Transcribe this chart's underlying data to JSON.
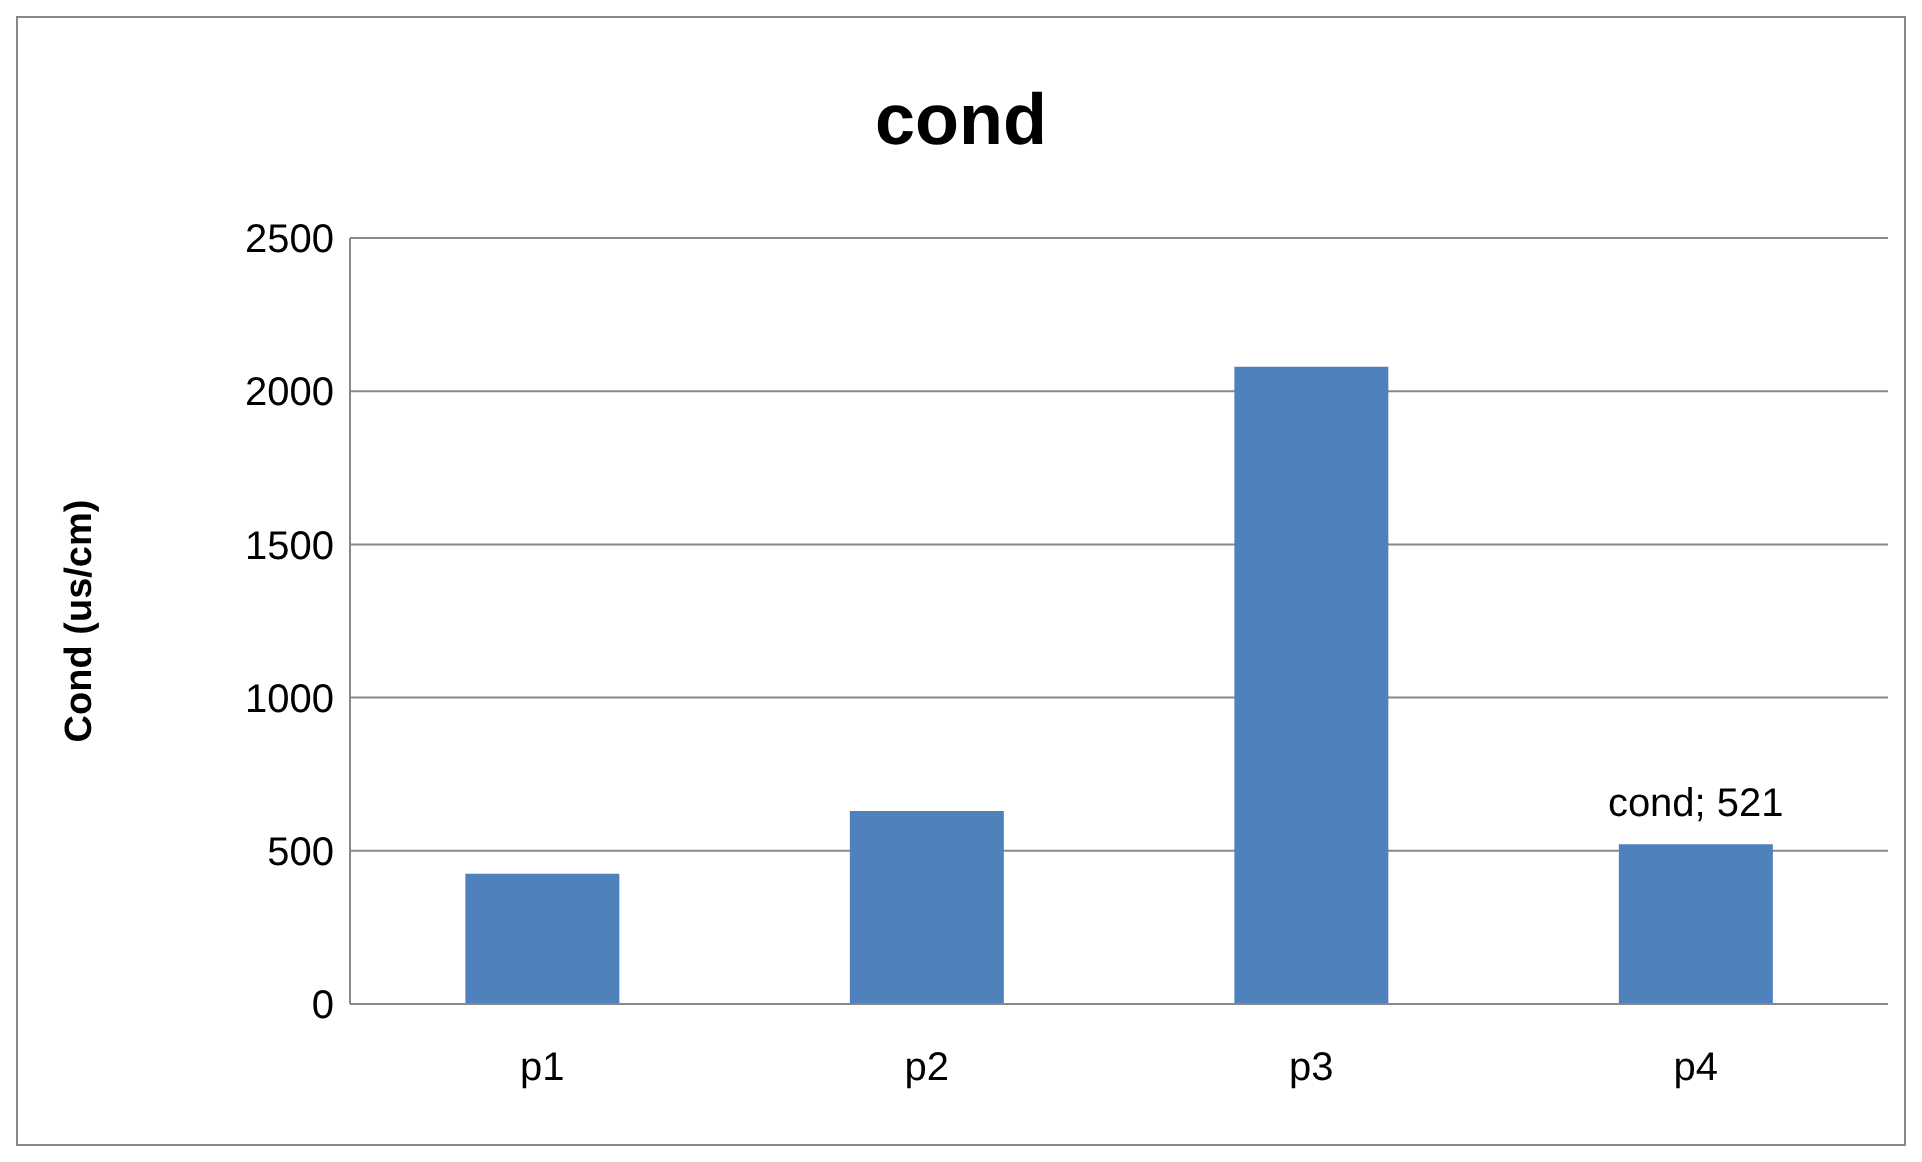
{
  "chart_data": {
    "type": "bar",
    "title": "cond",
    "ylabel": "Cond (us/cm)",
    "categories": [
      "p1",
      "p2",
      "p3",
      "p4"
    ],
    "series": [
      {
        "color": "#4f81bd",
        "values": [
          425,
          630,
          2080,
          521
        ]
      }
    ],
    "ylim": [
      0,
      2500
    ],
    "yticks": [
      0,
      500,
      1000,
      1500,
      2000,
      2500
    ],
    "grid": "y",
    "annotations": [
      {
        "text": "cond; 521",
        "x": "p4",
        "y": 521
      }
    ]
  }
}
